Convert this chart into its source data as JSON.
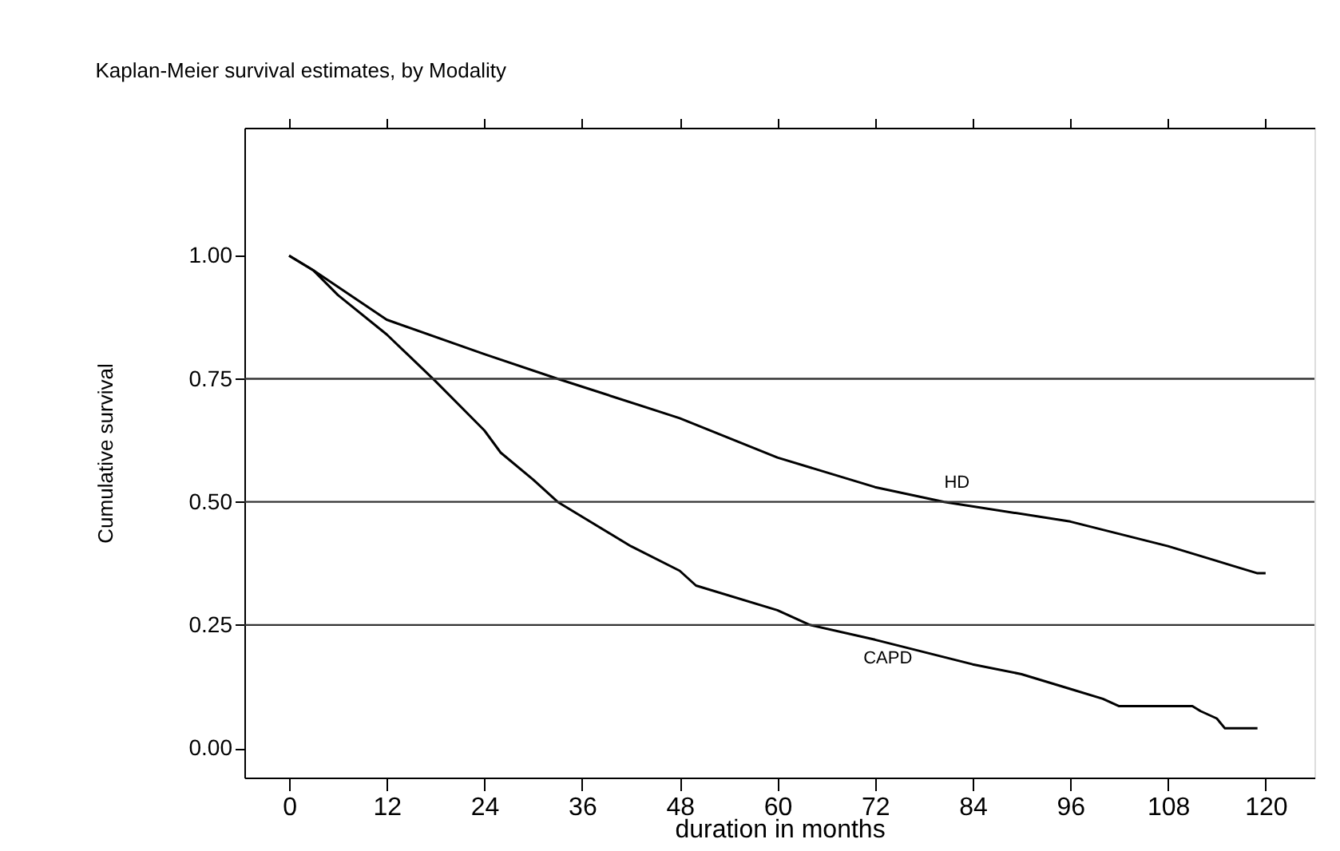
{
  "chart_data": {
    "type": "line",
    "title": "Kaplan-Meier survival estimates, by Modality",
    "xlabel": "duration in months",
    "ylabel": "Cumulative survival",
    "series": [
      {
        "name": "HD",
        "color": "#000000",
        "x": [
          0,
          3,
          12,
          24,
          33,
          48,
          60,
          72,
          80.5,
          96,
          108,
          114,
          116,
          119,
          120
        ],
        "values": [
          1.0,
          0.97,
          0.87,
          0.8,
          0.75,
          0.67,
          0.59,
          0.53,
          0.5,
          0.46,
          0.41,
          0.38,
          0.37,
          0.355,
          0.355
        ]
      },
      {
        "name": "CAPD",
        "color": "#000000",
        "x": [
          0,
          3,
          6,
          12,
          18,
          24,
          26,
          30,
          33,
          36,
          42,
          48,
          50,
          60,
          64,
          72,
          84,
          90,
          96,
          100,
          102,
          111,
          112,
          114,
          115,
          119
        ],
        "values": [
          1.0,
          0.97,
          0.92,
          0.84,
          0.745,
          0.645,
          0.6,
          0.545,
          0.5,
          0.47,
          0.41,
          0.36,
          0.33,
          0.28,
          0.25,
          0.22,
          0.17,
          0.15,
          0.12,
          0.1,
          0.085,
          0.085,
          0.075,
          0.06,
          0.04,
          0.04
        ]
      }
    ],
    "xlim": [
      -5.5,
      126
    ],
    "xticks": [
      0,
      12,
      24,
      36,
      48,
      60,
      72,
      84,
      96,
      108,
      120
    ],
    "ylim": [
      -0.06,
      1.26
    ],
    "yticks": [
      {
        "value": 0,
        "label": "0.00"
      },
      {
        "value": 0.25,
        "label": "0.25"
      },
      {
        "value": 0.5,
        "label": "0.50"
      },
      {
        "value": 0.75,
        "label": "0.75"
      },
      {
        "value": 1,
        "label": "1.00"
      }
    ],
    "ref_lines": [
      {
        "axis": "y",
        "value": 0.25,
        "color": "#333333"
      },
      {
        "axis": "y",
        "value": 0.5,
        "color": "#333333"
      },
      {
        "axis": "y",
        "value": 0.75,
        "color": "#333333"
      }
    ],
    "grid": false
  }
}
